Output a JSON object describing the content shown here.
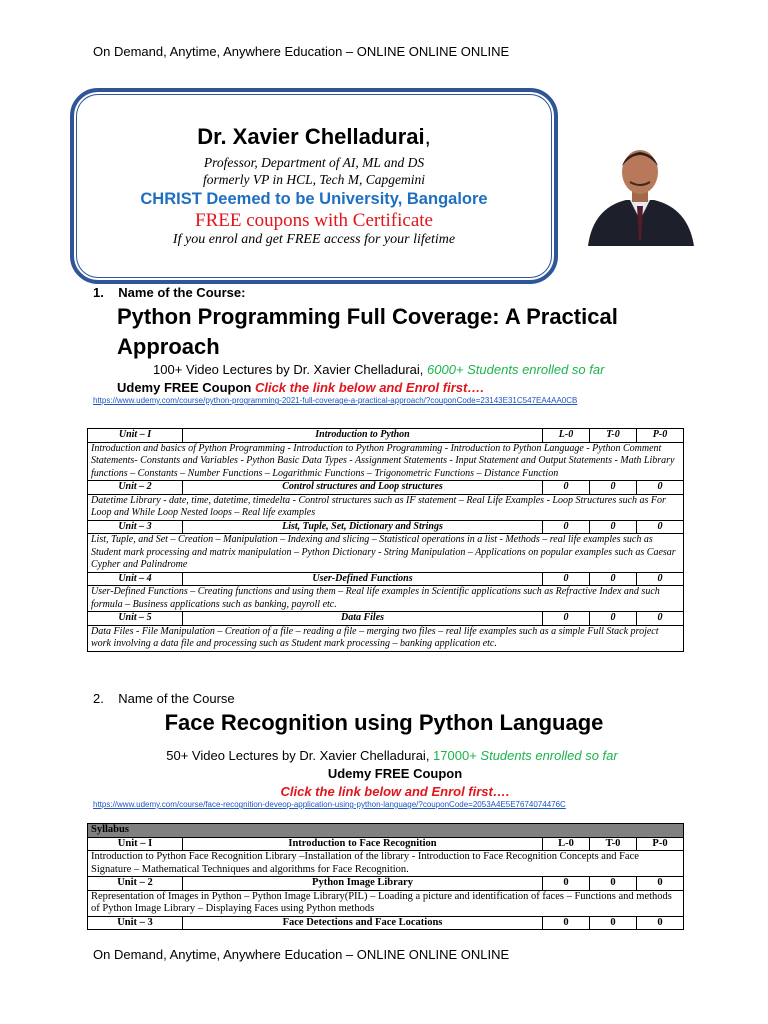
{
  "header": "On Demand, Anytime, Anywhere Education – ONLINE ONLINE ONLINE",
  "footer": "On Demand, Anytime, Anywhere Education – ONLINE ONLINE ONLINE",
  "banner": {
    "name": "Dr. Xavier Chelladurai",
    "comma": ",",
    "role": "Professor, Department of AI, ML and DS",
    "former": "formerly VP in HCL, Tech M, Capgemini",
    "university": "CHRIST Deemed to be University, Bangalore",
    "free": "FREE coupons with Certificate",
    "lifetime": "If you enrol and get  FREE access for your lifetime"
  },
  "course1": {
    "number": "1.",
    "label": "Name of the Course:",
    "title": "Python Programming  Full Coverage: A Practical Approach",
    "lectures": "100+ Video Lectures by Dr. Xavier Chelladurai, ",
    "students": "6000+ Students enrolled so far",
    "coupon": "Udemy FREE Coupon ",
    "cta": "Click the link below and Enrol first….",
    "url": "https://www.udemy.com/course/python-programming-2021-full-coverage-a-practical-approach/?couponCode=23143E31C547EA4AA0CB",
    "units": [
      {
        "unit": "Unit – I",
        "title": "Introduction  to Python",
        "l": "L-0",
        "t": "T-0",
        "p": "P-0",
        "desc": "Introduction and basics of Python Programming - Introduction to Python Programming - Introduction to Python Language - Python Comment Statements- Constants and Variables - Python Basic Data Types - Assignment Statements - Input Statement and Output Statements - Math Library functions – Constants – Number Functions – Logarithmic Functions – Trigonometric Functions – Distance Function"
      },
      {
        "unit": "Unit – 2",
        "title": "Control structures and Loop structures",
        "l": "0",
        "t": "0",
        "p": "0",
        "desc": "Datetime Library - date, time, datetime, timedelta - Control structures such as IF statement – Real Life Examples - Loop Structures such as For Loop and While Loop Nested loops – Real life examples"
      },
      {
        "unit": "Unit – 3",
        "title": "List, Tuple, Set, Dictionary and Strings",
        "l": "0",
        "t": "0",
        "p": "0",
        "desc": "List, Tuple, and Set – Creation – Manipulation – Indexing and slicing – Statistical operations in a list - Methods – real life examples such as Student mark processing and matrix manipulation – Python Dictionary  - String Manipulation – Applications on popular examples such as Caesar Cypher and Palindrome"
      },
      {
        "unit": "Unit – 4",
        "title": "User-Defined Functions",
        "l": "0",
        "t": "0",
        "p": "0",
        "desc": "User-Defined Functions – Creating functions and using them – Real life examples in Scientific applications such as Refractive Index and such formula – Business applications such as banking, payroll etc."
      },
      {
        "unit": "Unit – 5",
        "title": "Data Files",
        "l": "0",
        "t": "0",
        "p": "0",
        "desc": "Data Files - File Manipulation – Creation of a file – reading a file – merging two files – real life examples such as a simple Full Stack project work involving a data file and processing such as Student mark processing – banking application etc."
      }
    ]
  },
  "course2": {
    "number": "2.",
    "label": "Name of the Course",
    "title": "Face Recognition using Python Language",
    "lectures": "50+ Video Lectures by Dr. Xavier Chelladurai, ",
    "students_num": "17000+",
    "students": " Students enrolled so far",
    "coupon": "Udemy FREE Coupon",
    "cta": "Click the link below and Enrol first….",
    "url": "https://www.udemy.com/course/face-recognition-deveop-application-using-python-language/?couponCode=2053A4E5E7674074476C",
    "syllabus": "Syllabus",
    "units": [
      {
        "unit": "Unit – I",
        "title": "Introduction to Face Recognition",
        "l": "L-0",
        "t": "T-0",
        "p": "P-0",
        "desc": "Introduction to Python Face Recognition Library –Installation of the library -  Introduction to Face Recognition Concepts and Face Signature – Mathematical Techniques and algorithms for Face Recognition."
      },
      {
        "unit": "Unit – 2",
        "title": "Python Image Library",
        "l": "0",
        "t": "0",
        "p": "0",
        "desc": "Representation of Images in Python – Python Image Library(PIL) – Loading a picture and identification of faces – Functions and methods of Python Image Library – Displaying Faces using Python methods"
      },
      {
        "unit": "Unit – 3",
        "title": "Face Detections and Face Locations",
        "l": "0",
        "t": "0",
        "p": "0"
      }
    ]
  }
}
